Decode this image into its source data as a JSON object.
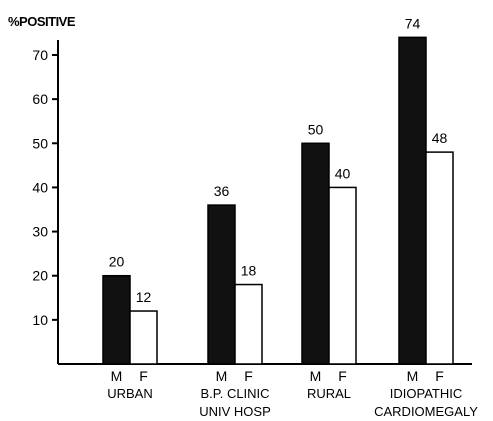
{
  "chart_data": {
    "type": "bar",
    "ylabel": "%POSITIVE",
    "ylim": [
      0,
      70
    ],
    "yticks": [
      10,
      20,
      30,
      40,
      50,
      60,
      70
    ],
    "grid": false,
    "legend": "none",
    "categories": [
      {
        "label_lines": [
          "URBAN"
        ],
        "sexes": [
          "M",
          "F"
        ],
        "values": [
          20,
          12
        ]
      },
      {
        "label_lines": [
          "B.P. CLINIC",
          "UNIV HOSP"
        ],
        "sexes": [
          "M",
          "F"
        ],
        "values": [
          36,
          18
        ]
      },
      {
        "label_lines": [
          "RURAL"
        ],
        "sexes": [
          "M",
          "F"
        ],
        "values": [
          50,
          40
        ]
      },
      {
        "label_lines": [
          "IDIOPATHIC",
          "CARDIOMEGALY"
        ],
        "sexes": [
          "M",
          "F"
        ],
        "values": [
          74,
          48
        ]
      }
    ],
    "colors": {
      "male": "#111111",
      "female": "#ffffff",
      "stroke": "#000000"
    }
  }
}
